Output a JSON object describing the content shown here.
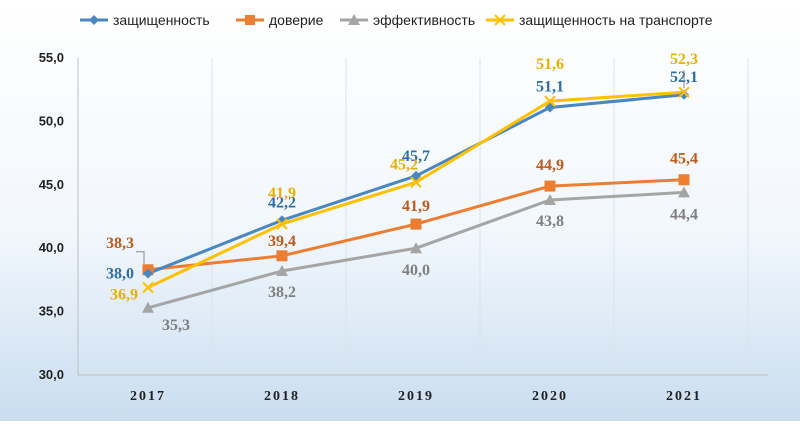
{
  "chart_data": {
    "type": "line",
    "categories": [
      "2017",
      "2018",
      "2019",
      "2020",
      "2021"
    ],
    "ylim": [
      30,
      55
    ],
    "yticks": [
      "30,0",
      "35,0",
      "40,0",
      "45,0",
      "50,0",
      "55,0"
    ],
    "ytick_values": [
      30,
      35,
      40,
      45,
      50,
      55
    ],
    "grid": "vertical",
    "legend_position": "top",
    "series": [
      {
        "name": "защищенность",
        "color": "#4a86c0",
        "marker": "diamond",
        "label_color": "#2d6fa5",
        "values": [
          38.0,
          42.2,
          45.7,
          51.1,
          52.1
        ],
        "labels": [
          "38,0",
          "42,2",
          "45,7",
          "51,1",
          "52,1"
        ]
      },
      {
        "name": "доверие",
        "color": "#ed7d31",
        "marker": "square",
        "label_color": "#c05a17",
        "values": [
          38.3,
          39.4,
          41.9,
          44.9,
          45.4
        ],
        "labels": [
          "38,3",
          "39,4",
          "41,9",
          "44,9",
          "45,4"
        ]
      },
      {
        "name": "эффективность",
        "color": "#a5a5a5",
        "marker": "triangle",
        "label_color": "#7f7f7f",
        "values": [
          35.3,
          38.2,
          40.0,
          43.8,
          44.4
        ],
        "labels": [
          "35,3",
          "38,2",
          "40,0",
          "43,8",
          "44,4"
        ]
      },
      {
        "name": "защищенность на транспорте",
        "color": "#ffc000",
        "marker": "x",
        "label_color": "#e8b100",
        "values": [
          36.9,
          41.9,
          45.2,
          51.6,
          52.3
        ],
        "labels": [
          "36,9",
          "41,9",
          "45,2",
          "51,6",
          "52,3"
        ]
      }
    ]
  }
}
